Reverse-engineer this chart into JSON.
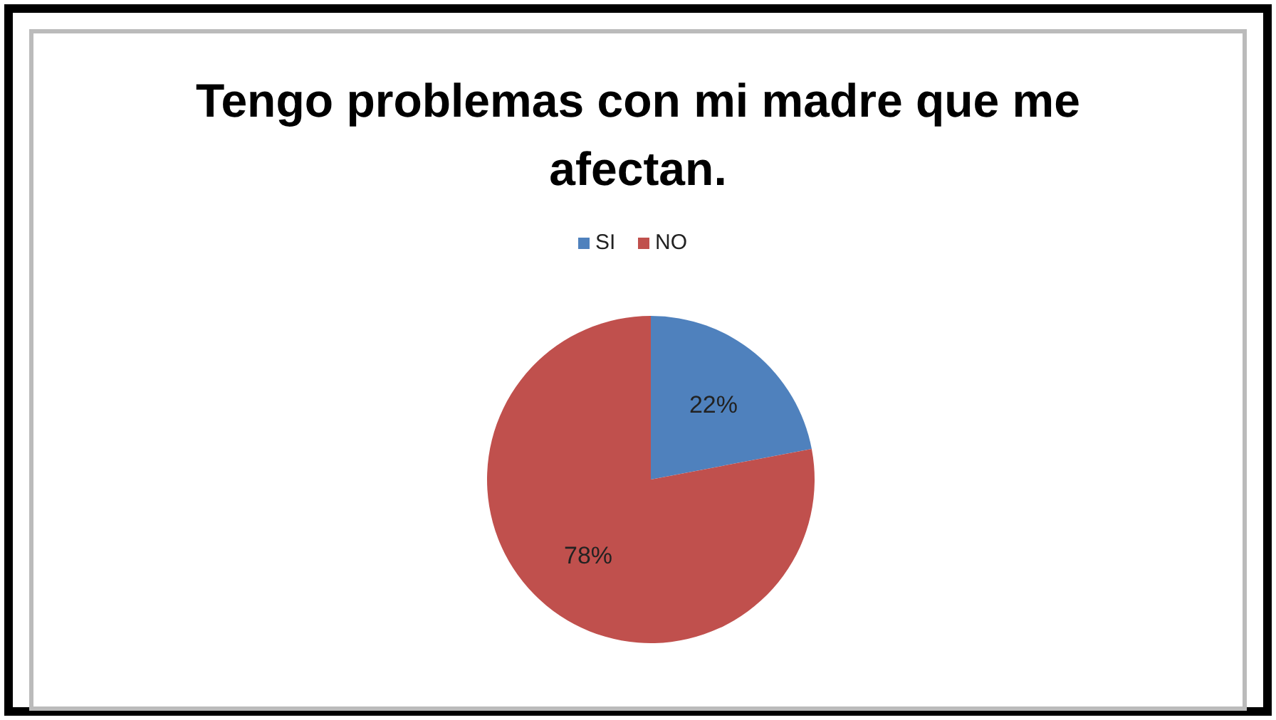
{
  "chart_data": {
    "type": "pie",
    "title": "Tengo problemas con mi madre que me afectan.",
    "categories": [
      "SI",
      "NO"
    ],
    "values": [
      22,
      78
    ],
    "colors": [
      "#4f81bd",
      "#c0504d"
    ],
    "value_labels": [
      "22%",
      "78%"
    ],
    "legend": "top"
  }
}
